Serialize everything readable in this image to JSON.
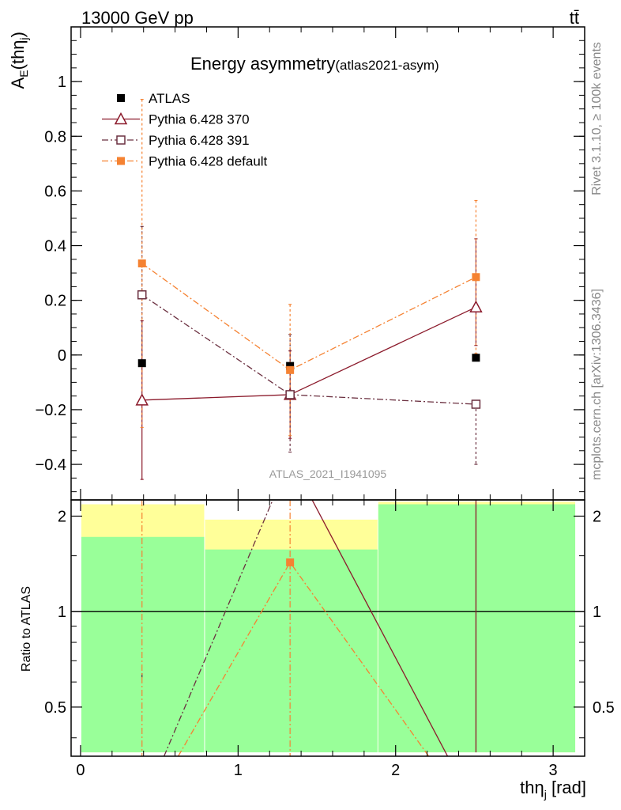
{
  "header": {
    "left": "13000 GeV pp",
    "right": "tt̄",
    "side_top": "Rivet 3.1.10, ≥ 100k events",
    "side_bottom": "mcplots.cern.ch [arXiv:1306.3436]"
  },
  "chart_data": {
    "type": "scatter",
    "title": "Energy asymmetry",
    "title_tag": "(atlas2021-asym)",
    "analysis": "ATLAS_2021_I1941095",
    "xlabel": "thη_j [rad]",
    "ylabel": "A_E(thη_j)",
    "ratio_ylabel": "Ratio to ATLAS",
    "xlim": [
      -0.06,
      3.2
    ],
    "ylim": [
      -0.53,
      1.2
    ],
    "ratio_ylim": [
      0.35,
      2.25
    ],
    "x_ticks": [
      "0",
      "1",
      "2",
      "3"
    ],
    "y_ticks": [
      "−0.4",
      "−0.2",
      "0",
      "0.2",
      "0.4",
      "0.6",
      "0.8",
      "1"
    ],
    "ratio_ticks": [
      "0.5",
      "1",
      "2"
    ],
    "bins": [
      [
        0,
        0.785
      ],
      [
        0.785,
        1.885
      ],
      [
        1.885,
        3.14
      ]
    ],
    "legend_position": "top-left",
    "series": [
      {
        "name": "ATLAS",
        "color": "#000000",
        "marker": "square-filled",
        "line": "none",
        "x": [
          0.39,
          1.33,
          2.51
        ],
        "y": [
          -0.03,
          -0.04,
          -0.01
        ],
        "ratio_band_inner": [
          [
            0.36,
            1.72
          ],
          [
            0.36,
            1.57
          ],
          [
            0.36,
            2.18
          ]
        ],
        "ratio_band_outer": [
          [
            0.36,
            2.18
          ],
          [
            0.55,
            1.95
          ],
          [
            0.36,
            2.22
          ]
        ]
      },
      {
        "name": "Pythia 6.428 370",
        "color": "#8b1a2b",
        "marker": "triangle-open",
        "line": "solid",
        "x": [
          0.39,
          1.33,
          2.51
        ],
        "y": [
          -0.165,
          -0.145,
          0.175
        ],
        "yerr_low": [
          0.29,
          0.16,
          0.14
        ],
        "yerr_high": [
          0.29,
          0.16,
          0.25
        ]
      },
      {
        "name": "Pythia 6.428 391",
        "color": "#6b3040",
        "marker": "square-open",
        "line": "dashdot",
        "x": [
          0.39,
          1.33,
          2.51
        ],
        "y": [
          0.22,
          -0.145,
          -0.18
        ],
        "yerr_low": [
          0.25,
          0.21,
          0.22
        ],
        "yerr_high": [
          0.25,
          0.22,
          0.0
        ]
      },
      {
        "name": "Pythia 6.428 default",
        "color": "#f58232",
        "marker": "square-filled",
        "line": "dashdot",
        "x": [
          0.39,
          1.33,
          2.51
        ],
        "y": [
          0.335,
          -0.055,
          0.285
        ],
        "yerr_low": [
          0.6,
          0.24,
          0.28
        ],
        "yerr_high": [
          0.6,
          0.24,
          0.28
        ],
        "ratio": 1.43
      }
    ]
  }
}
